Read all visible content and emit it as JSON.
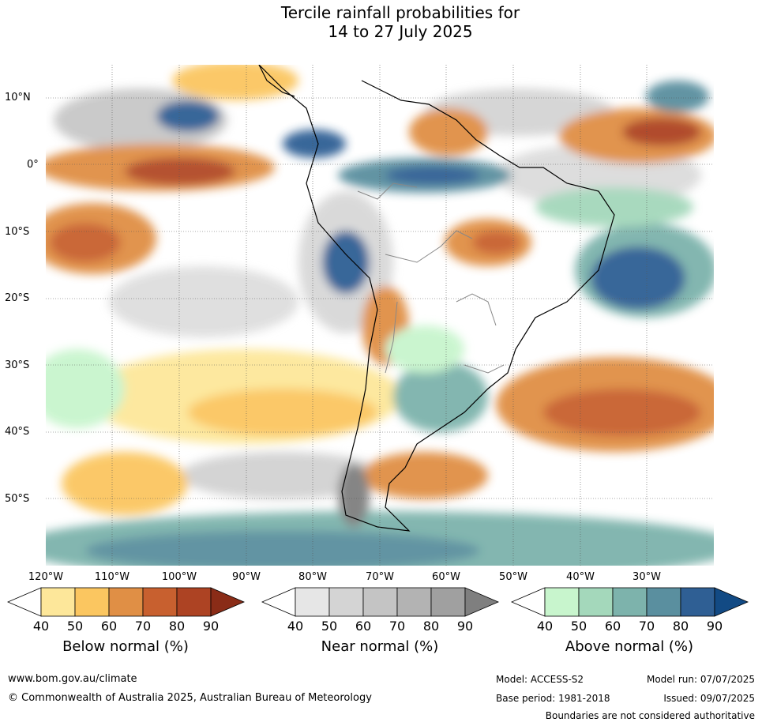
{
  "title_line1": "Tercile rainfall probabilities for",
  "title_line2": "14 to 27 July 2025",
  "lat_labels": [
    "10°N",
    "0°",
    "10°S",
    "20°S",
    "30°S",
    "40°S",
    "50°S"
  ],
  "lon_labels": [
    "120°W",
    "110°W",
    "100°W",
    "90°W",
    "80°W",
    "70°W",
    "60°W",
    "50°W",
    "40°W",
    "30°W"
  ],
  "colorbars": [
    {
      "title": "Below normal (%)",
      "ticks": [
        "40",
        "50",
        "60",
        "70",
        "80",
        "90"
      ],
      "colors": [
        "#ffffff",
        "#fde79a",
        "#fbc660",
        "#e08f45",
        "#c8602f",
        "#ad4323",
        "#8a2c17"
      ]
    },
    {
      "title": "Near normal (%)",
      "ticks": [
        "40",
        "50",
        "60",
        "70",
        "80",
        "90"
      ],
      "colors": [
        "#ffffff",
        "#e6e6e6",
        "#d4d4d4",
        "#c4c4c4",
        "#b3b3b3",
        "#a0a0a0",
        "#7f7f7f"
      ]
    },
    {
      "title": "Above normal (%)",
      "ticks": [
        "40",
        "50",
        "60",
        "70",
        "80",
        "90"
      ],
      "colors": [
        "#ffffff",
        "#c8f5cd",
        "#a4d8bb",
        "#7db3ac",
        "#5a8f9f",
        "#2f5f94",
        "#124a84"
      ]
    }
  ],
  "footer": {
    "website": "www.bom.gov.au/climate",
    "copyright": "© Commonwealth of Australia 2025, Australian Bureau of Meteorology",
    "model": "Model: ACCESS-S2",
    "base_period": "Base period: 1981-2018",
    "model_run": "Model run: 07/07/2025",
    "issued": "Issued: 09/07/2025",
    "disclaimer": "Boundaries are not considered authoritative"
  }
}
